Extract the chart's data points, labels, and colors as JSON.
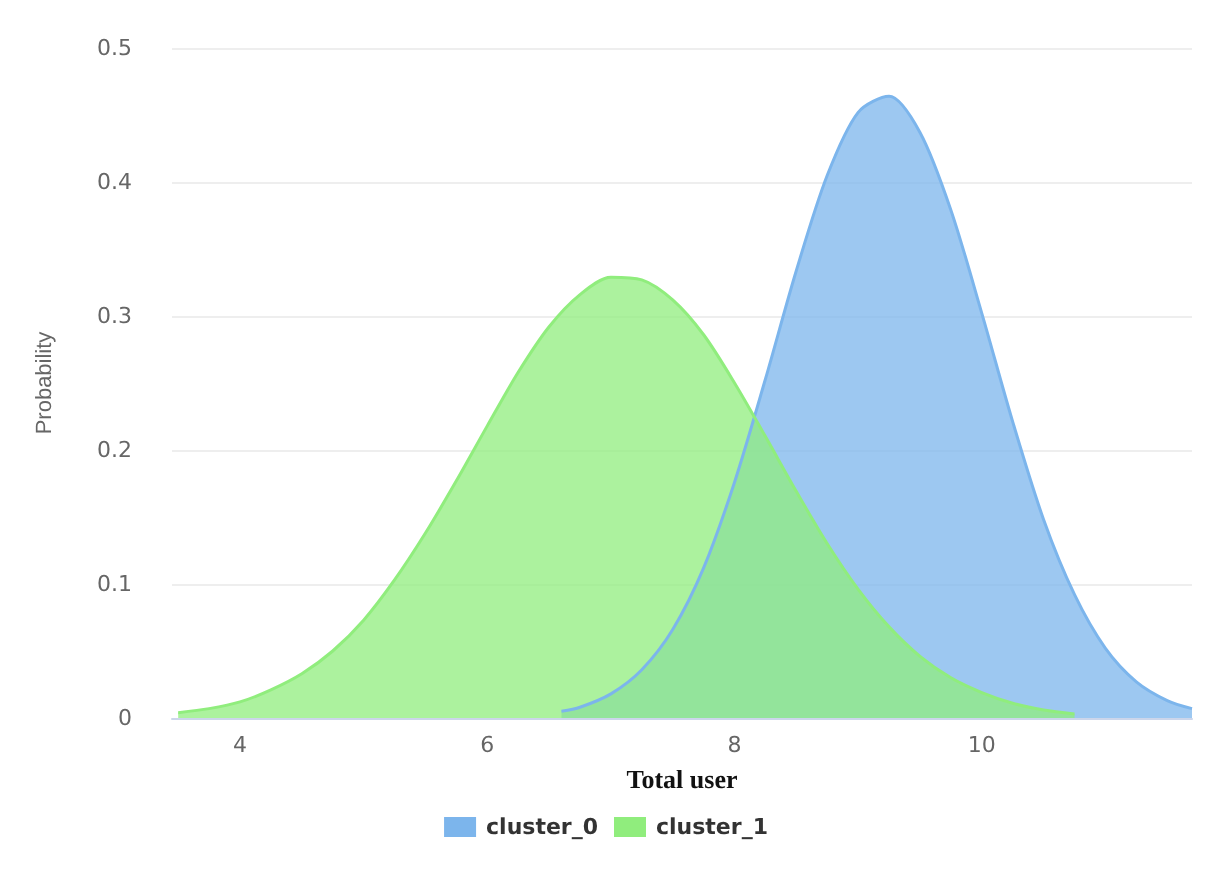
{
  "chart_data": {
    "type": "area",
    "xlabel": "Total user",
    "ylabel": "Probability",
    "xlim": [
      3.45,
      11.7
    ],
    "xticks": [
      4,
      6,
      8,
      10
    ],
    "ylim": [
      0,
      0.5
    ],
    "yticks": [
      0,
      0.1,
      0.2,
      0.3,
      0.4,
      0.5
    ],
    "grid": "y",
    "legend": "bottom",
    "marker": "none",
    "series": [
      {
        "name": "cluster_0",
        "color": "#7cb5ec",
        "x": [
          6.6,
          6.75,
          7,
          7.25,
          7.5,
          7.75,
          8,
          8.25,
          8.5,
          8.75,
          9,
          9.25,
          9.5,
          9.75,
          10,
          10.25,
          10.5,
          10.75,
          11,
          11.25,
          11.5,
          11.7
        ],
        "values": [
          0.005,
          0.008,
          0.018,
          0.036,
          0.066,
          0.112,
          0.176,
          0.253,
          0.334,
          0.405,
          0.452,
          0.464,
          0.437,
          0.379,
          0.302,
          0.221,
          0.148,
          0.092,
          0.052,
          0.027,
          0.013,
          0.007
        ]
      },
      {
        "name": "cluster_1",
        "color": "#90ed7d",
        "x": [
          3.5,
          3.75,
          4,
          4.25,
          4.5,
          4.75,
          5,
          5.25,
          5.5,
          5.75,
          6,
          6.25,
          6.5,
          6.75,
          7,
          7.25,
          7.5,
          7.75,
          8,
          8.25,
          8.5,
          8.75,
          9,
          9.25,
          9.5,
          9.75,
          10,
          10.25,
          10.5,
          10.75
        ],
        "values": [
          0.004,
          0.007,
          0.012,
          0.021,
          0.033,
          0.05,
          0.073,
          0.103,
          0.138,
          0.177,
          0.218,
          0.258,
          0.292,
          0.316,
          0.329,
          0.327,
          0.312,
          0.286,
          0.25,
          0.21,
          0.169,
          0.13,
          0.096,
          0.068,
          0.046,
          0.03,
          0.019,
          0.011,
          0.006,
          0.003
        ]
      }
    ]
  }
}
